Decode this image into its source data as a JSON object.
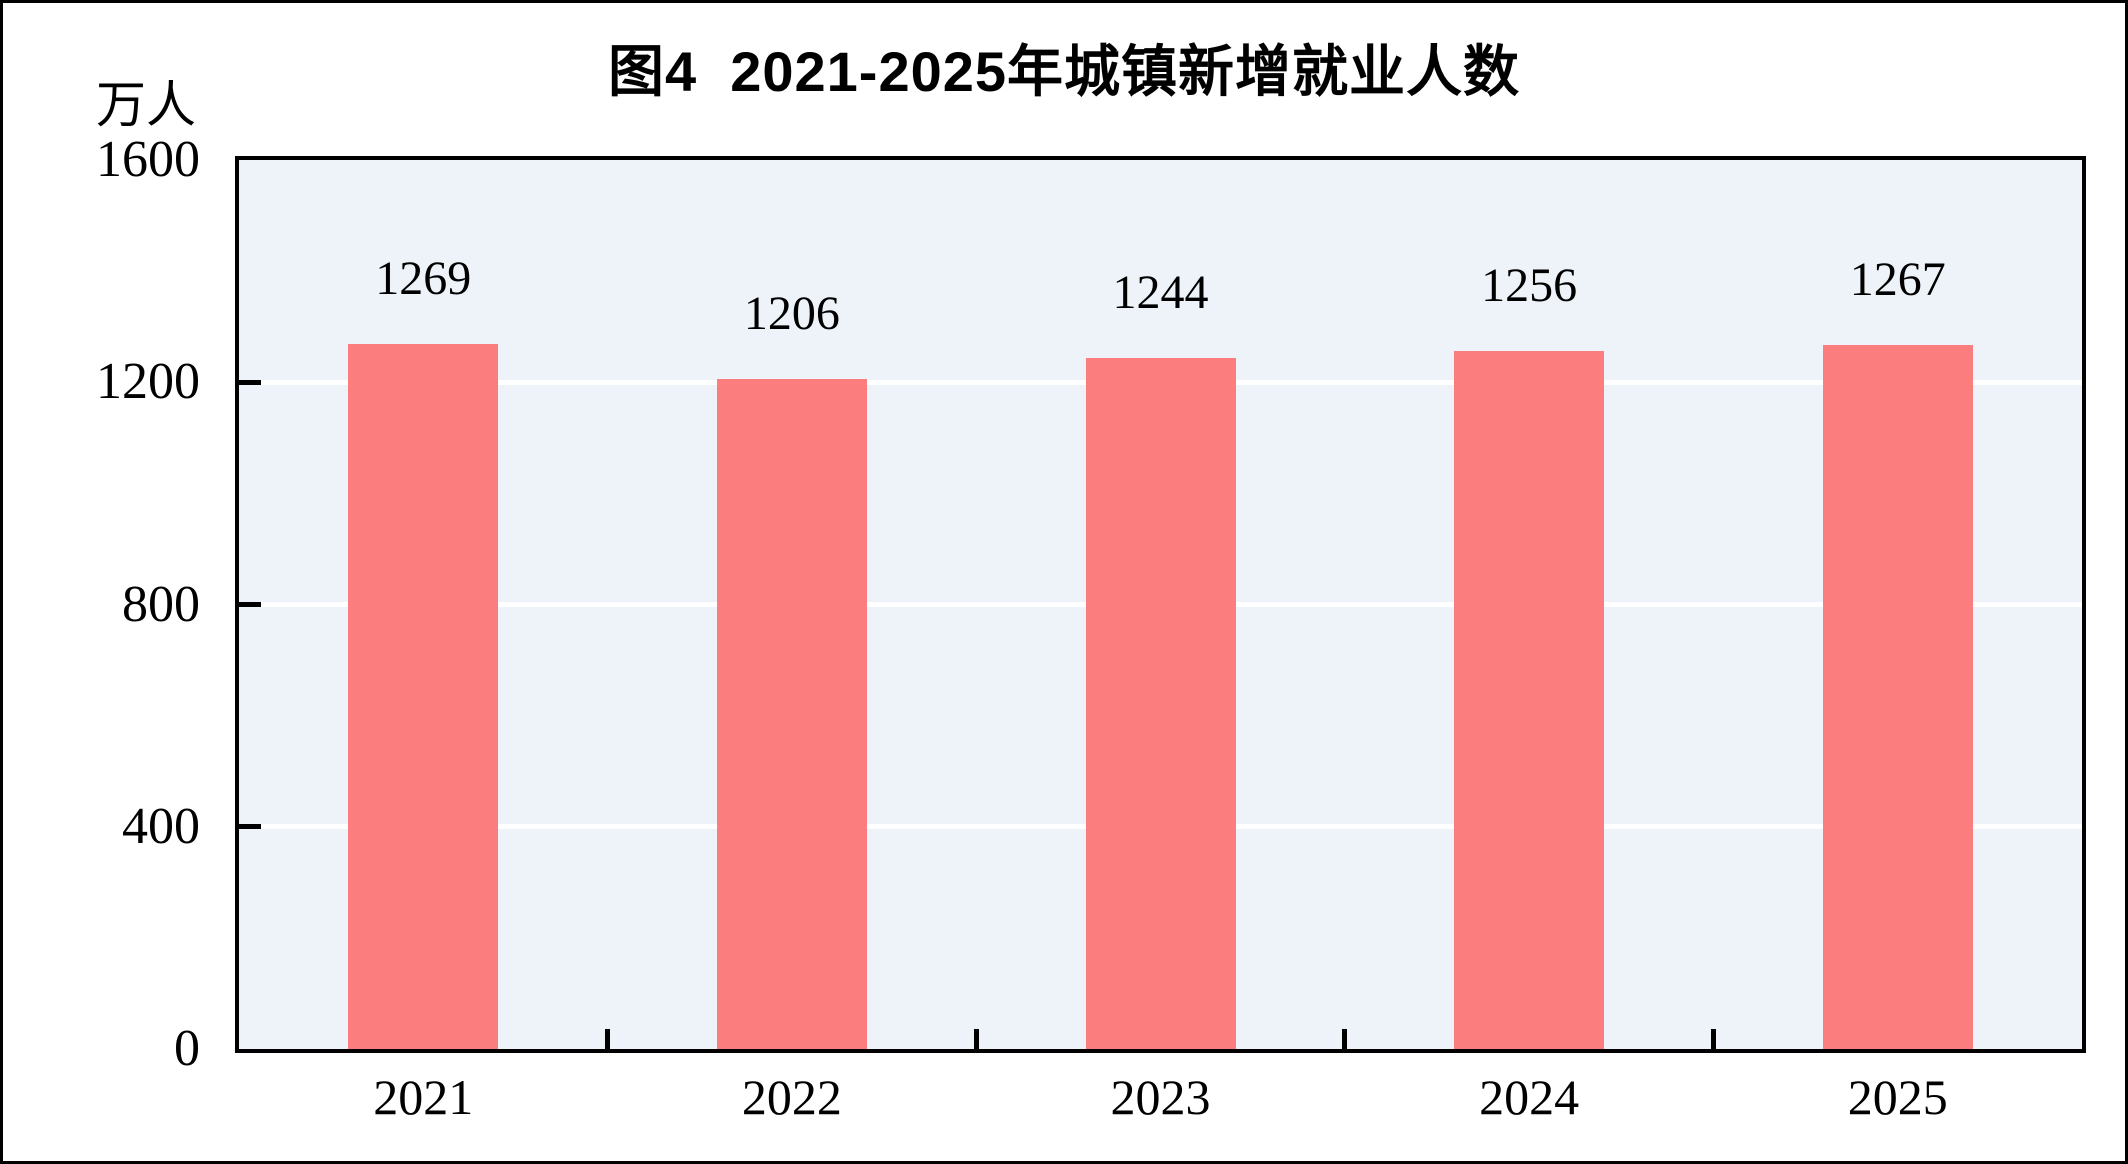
{
  "chart_data": {
    "type": "bar",
    "title": "图4  2021-2025年城镇新增就业人数",
    "ylabel": "万人",
    "xlabel": "",
    "categories": [
      "2021",
      "2022",
      "2023",
      "2024",
      "2025"
    ],
    "values": [
      1269,
      1206,
      1244,
      1256,
      1267
    ],
    "series": [
      {
        "name": "城镇新增就业人数",
        "values": [
          1269,
          1206,
          1244,
          1256,
          1267
        ]
      }
    ],
    "y_ticks": [
      0,
      400,
      800,
      1200,
      1600
    ],
    "ylim": [
      0,
      1600
    ],
    "grid": "horizontal white gridlines at 400, 800, 1200",
    "legend": "none",
    "bar_labels": [
      "1269",
      "1206",
      "1244",
      "1256",
      "1267"
    ],
    "colors": {
      "bar": "#FC7D7D",
      "plot_background": "#EDF3F8",
      "gridline": "#FFFFFF",
      "axis_frame": "#000000",
      "text": "#000000",
      "page_background": "#FFFFFF"
    }
  }
}
